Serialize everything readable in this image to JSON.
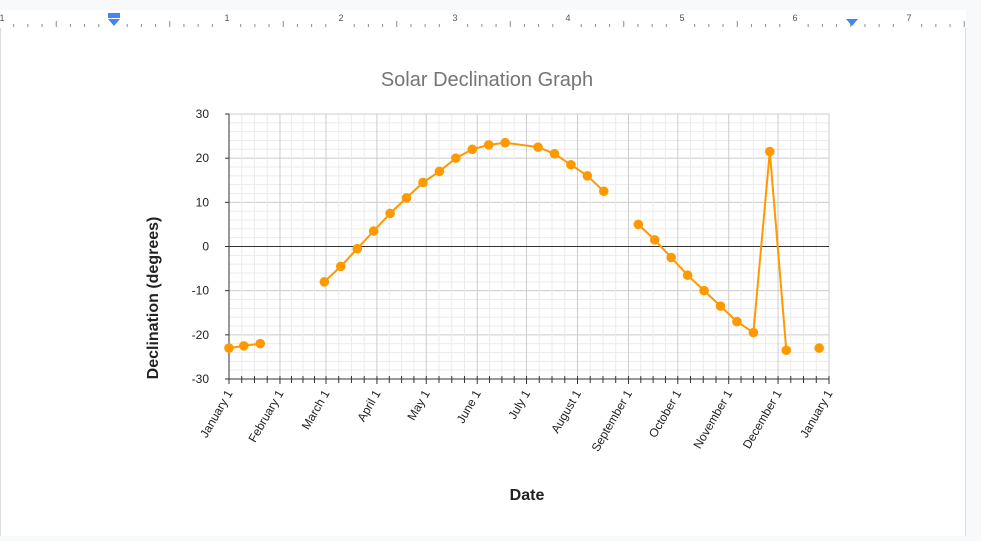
{
  "ruler": {
    "numbers": [
      "1",
      "1",
      "2",
      "3",
      "4",
      "5",
      "6",
      "7"
    ],
    "indent_color": "#4285f4"
  },
  "chart_data": {
    "type": "line",
    "title": "Solar Declination Graph",
    "xlabel": "Date",
    "ylabel": "Declination (degrees)",
    "ylim": [
      -30,
      30
    ],
    "yticks": [
      30,
      20,
      10,
      0,
      -10,
      -20,
      -30
    ],
    "xlim": [
      "2021-01-01",
      "2022-01-01"
    ],
    "x_tick_labels": [
      {
        "label": "January 1",
        "date": "2021-01-01"
      },
      {
        "label": "February 1",
        "date": "2021-02-01"
      },
      {
        "label": "March 1",
        "date": "2021-03-01"
      },
      {
        "label": "April 1",
        "date": "2021-04-01"
      },
      {
        "label": "May 1",
        "date": "2021-05-01"
      },
      {
        "label": "June 1",
        "date": "2021-06-01"
      },
      {
        "label": "July 1",
        "date": "2021-07-01"
      },
      {
        "label": "August 1",
        "date": "2021-08-01"
      },
      {
        "label": "September 1",
        "date": "2021-09-01"
      },
      {
        "label": "October 1",
        "date": "2021-10-01"
      },
      {
        "label": "November 1",
        "date": "2021-11-01"
      },
      {
        "label": "December 1",
        "date": "2021-12-01"
      },
      {
        "label": "January 1",
        "date": "2022-01-01"
      }
    ],
    "grid": true,
    "line_color": "#ff9900",
    "segments": [
      [
        {
          "x": "2021-01-01",
          "y": -23.0
        },
        {
          "x": "2021-01-10",
          "y": -22.5
        },
        {
          "x": "2021-01-20",
          "y": -22.0
        }
      ],
      [
        {
          "x": "2021-02-28",
          "y": -8.0
        },
        {
          "x": "2021-03-10",
          "y": -4.5
        },
        {
          "x": "2021-03-20",
          "y": -0.5
        },
        {
          "x": "2021-03-30",
          "y": 3.5
        },
        {
          "x": "2021-04-09",
          "y": 7.5
        },
        {
          "x": "2021-04-19",
          "y": 11.0
        },
        {
          "x": "2021-04-29",
          "y": 14.5
        },
        {
          "x": "2021-05-09",
          "y": 17.0
        },
        {
          "x": "2021-05-19",
          "y": 20.0
        },
        {
          "x": "2021-05-29",
          "y": 22.0
        },
        {
          "x": "2021-06-08",
          "y": 23.0
        },
        {
          "x": "2021-06-18",
          "y": 23.5
        },
        {
          "x": "2021-07-08",
          "y": 22.5
        },
        {
          "x": "2021-07-18",
          "y": 21.0
        },
        {
          "x": "2021-07-28",
          "y": 18.5
        },
        {
          "x": "2021-08-07",
          "y": 16.0
        },
        {
          "x": "2021-08-17",
          "y": 12.5
        }
      ],
      [
        {
          "x": "2021-09-07",
          "y": 5.0
        },
        {
          "x": "2021-09-17",
          "y": 1.5
        },
        {
          "x": "2021-09-27",
          "y": -2.5
        },
        {
          "x": "2021-10-07",
          "y": -6.5
        },
        {
          "x": "2021-10-17",
          "y": -10.0
        },
        {
          "x": "2021-10-27",
          "y": -13.5
        },
        {
          "x": "2021-11-06",
          "y": -17.0
        },
        {
          "x": "2021-11-16",
          "y": -19.5
        },
        {
          "x": "2021-11-26",
          "y": 21.5
        },
        {
          "x": "2021-12-06",
          "y": -23.5
        }
      ],
      [
        {
          "x": "2021-12-26",
          "y": -23.0
        }
      ]
    ]
  }
}
